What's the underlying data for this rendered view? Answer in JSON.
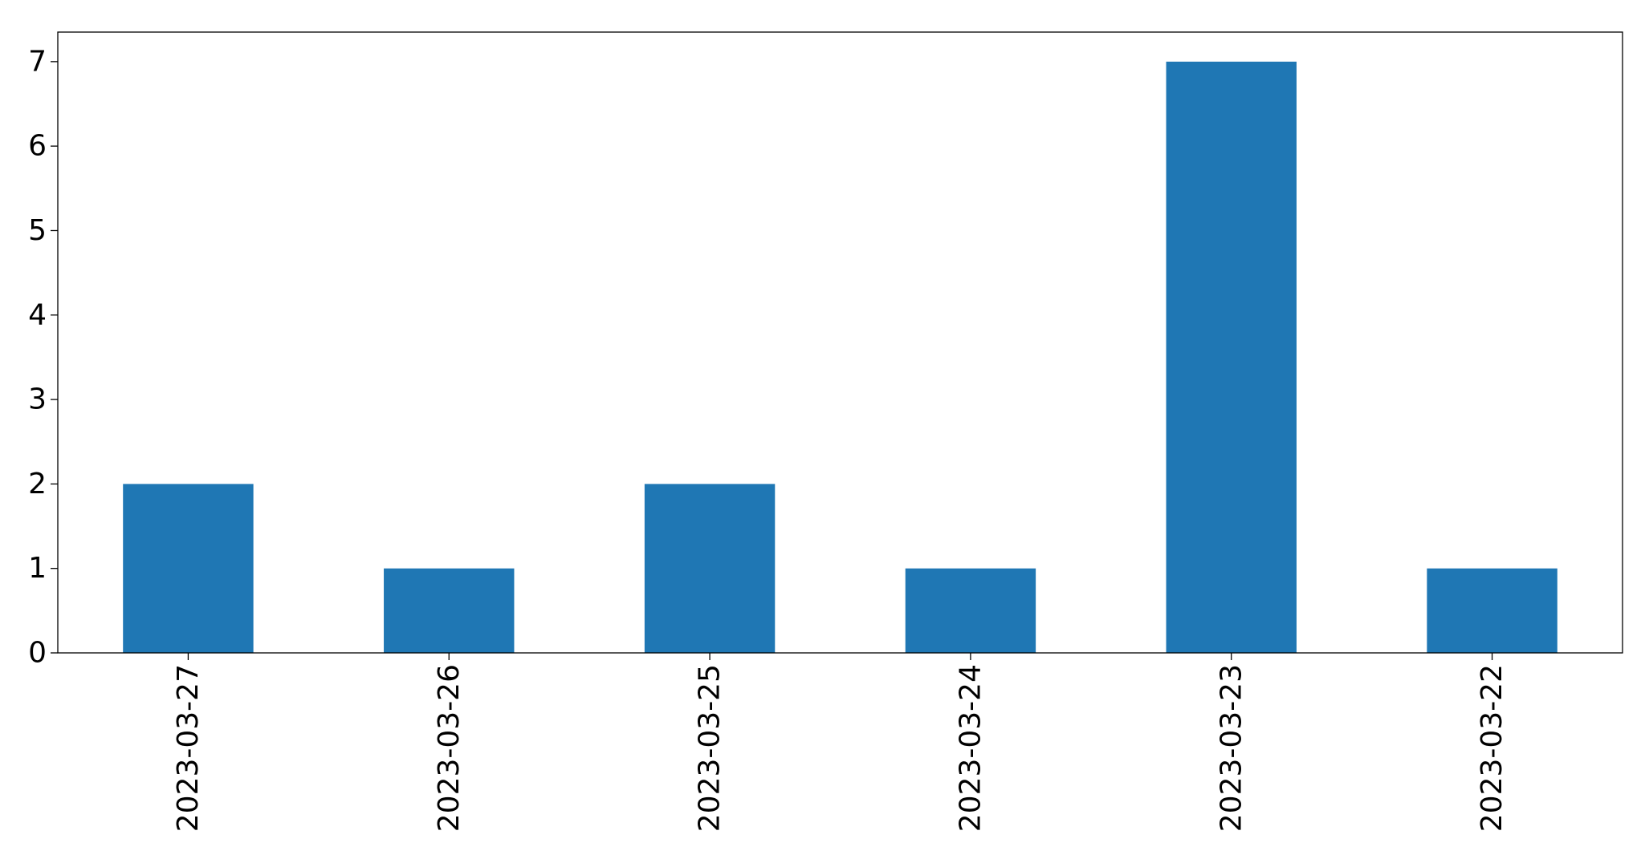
{
  "chart_data": {
    "type": "bar",
    "title": "",
    "xlabel": "",
    "ylabel": "",
    "categories": [
      "2023-03-27",
      "2023-03-26",
      "2023-03-25",
      "2023-03-24",
      "2023-03-23",
      "2023-03-22"
    ],
    "values": [
      2,
      1,
      2,
      1,
      7,
      1
    ],
    "ylim": [
      0,
      7.35
    ],
    "yticks": [
      0,
      1,
      2,
      3,
      4,
      5,
      6,
      7
    ],
    "grid": false,
    "legend": "none",
    "bar_color": "#1f77b4"
  }
}
